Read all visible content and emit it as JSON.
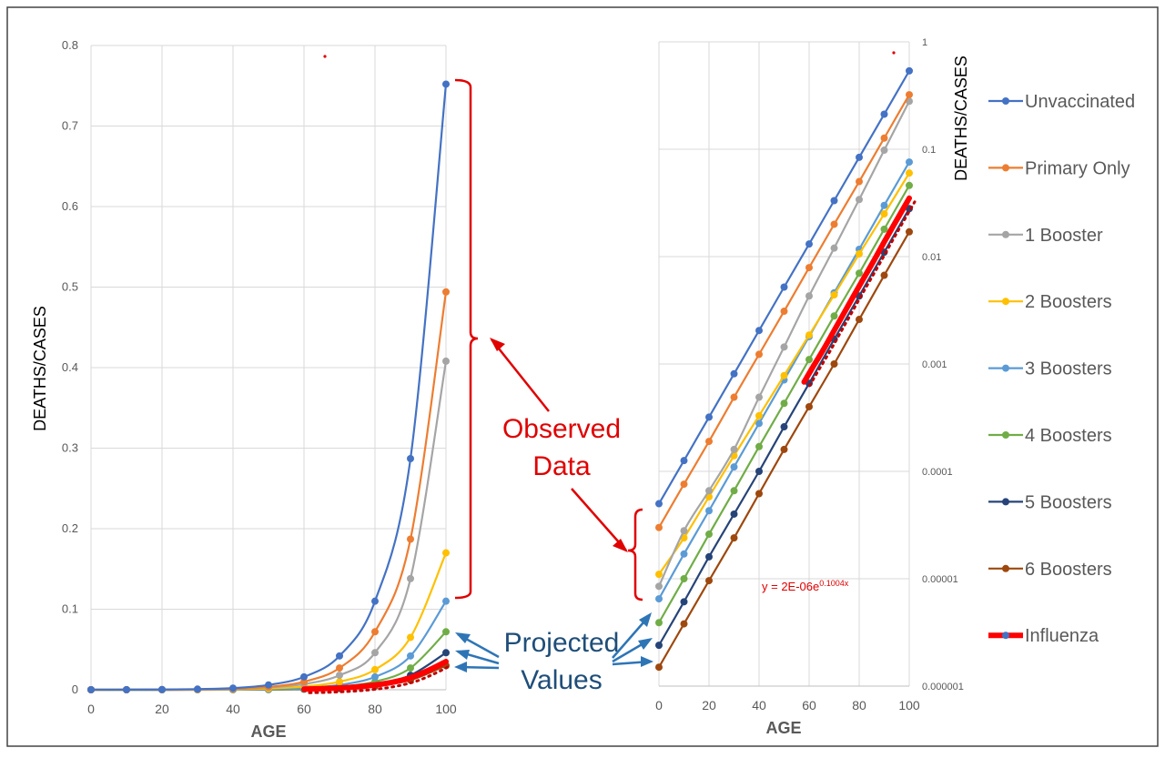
{
  "chart_data": [
    {
      "type": "line",
      "scale": "linear",
      "xlabel": "AGE",
      "ylabel": "DEATHS/CASES",
      "xlim": [
        0,
        100
      ],
      "ylim": [
        0,
        0.8
      ],
      "x_ticks": [
        "0",
        "20",
        "40",
        "60",
        "80",
        "100"
      ],
      "y_ticks": [
        "0",
        "0.1",
        "0.2",
        "0.3",
        "0.4",
        "0.5",
        "0.6",
        "0.7",
        "0.8"
      ],
      "grid": true,
      "x": [
        0,
        10,
        20,
        30,
        40,
        50,
        60,
        70,
        80,
        90,
        100
      ],
      "series": [
        {
          "name": "Unvaccinated",
          "values": [
            5e-05,
            0.0001,
            0.0003,
            0.0008,
            0.002,
            0.006,
            0.016,
            0.042,
            0.11,
            0.287,
            0.752
          ]
        },
        {
          "name": "Primary Only",
          "values": [
            3e-05,
            7e-05,
            0.0002,
            0.0005,
            0.0013,
            0.0035,
            0.01,
            0.027,
            0.072,
            0.187,
            0.494
          ]
        },
        {
          "name": "1 Booster",
          "values": [
            2e-05,
            6e-05,
            0.00016,
            0.0004,
            0.001,
            0.003,
            0.007,
            0.018,
            0.046,
            0.138,
            0.408
          ]
        },
        {
          "name": "2 Boosters",
          "values": [
            1e-05,
            3e-05,
            8e-05,
            0.0002,
            0.0006,
            0.0015,
            0.004,
            0.01,
            0.025,
            0.065,
            0.17
          ]
        },
        {
          "name": "3 Boosters",
          "values": [
            1e-05,
            2e-05,
            5e-05,
            0.00013,
            0.0003,
            0.0009,
            0.0025,
            0.006,
            0.016,
            0.042,
            0.11
          ]
        },
        {
          "name": "4 Boosters",
          "values": [
            5e-06,
            1.5e-05,
            4e-05,
            0.0001,
            0.0002,
            0.0005,
            0.0015,
            0.004,
            0.01,
            0.027,
            0.072
          ]
        },
        {
          "name": "5 Boosters",
          "values": [
            3e-06,
            8e-06,
            2e-05,
            5e-05,
            0.00013,
            0.0004,
            0.001,
            0.0025,
            0.007,
            0.018,
            0.046
          ]
        },
        {
          "name": "6 Boosters",
          "values": [
            2e-06,
            5e-06,
            1e-05,
            3e-05,
            9e-05,
            0.00025,
            0.0007,
            0.0017,
            0.0045,
            0.012,
            0.03
          ]
        },
        {
          "name": "Influenza",
          "x": [
            60,
            65,
            70,
            75,
            80,
            85,
            90,
            95,
            100
          ],
          "values": [
            0.0008,
            0.0013,
            0.0022,
            0.0036,
            0.0059,
            0.0094,
            0.015,
            0.024,
            0.035
          ]
        }
      ]
    },
    {
      "type": "line",
      "scale": "log",
      "xlabel": "AGE",
      "ylabel": "DEATHS/CASES",
      "xlim": [
        0,
        100
      ],
      "ylim": [
        1e-06,
        1
      ],
      "x_ticks": [
        "0",
        "20",
        "40",
        "60",
        "80",
        "100"
      ],
      "y_ticks": [
        "0.000001",
        "0.00001",
        "0.0001",
        "0.001",
        "0.01",
        "0.1",
        "1"
      ],
      "grid": true,
      "x": [
        0,
        10,
        20,
        30,
        40,
        50,
        60,
        70,
        80,
        90,
        100
      ],
      "series": [
        {
          "name": "Unvaccinated",
          "values": [
            5e-05,
            0.000126,
            0.00032,
            0.00081,
            0.00205,
            0.0052,
            0.0131,
            0.0332,
            0.084,
            0.212,
            0.537
          ]
        },
        {
          "name": "Primary Only",
          "values": [
            3e-05,
            7.6e-05,
            0.00019,
            0.00049,
            0.00123,
            0.0031,
            0.0079,
            0.02,
            0.05,
            0.127,
            0.322
          ]
        },
        {
          "name": "1 Booster",
          "values": [
            8.5e-06,
            2.8e-05,
            6.6e-05,
            0.00016,
            0.00049,
            0.00144,
            0.0043,
            0.012,
            0.034,
            0.098,
            0.28
          ]
        },
        {
          "name": "2 Boosters",
          "values": [
            1.1e-05,
            2.4e-05,
            5.8e-05,
            0.00014,
            0.00033,
            0.00078,
            0.00186,
            0.0044,
            0.0106,
            0.025,
            0.06
          ]
        },
        {
          "name": "3 Boosters",
          "values": [
            6.5e-06,
            1.7e-05,
            4.3e-05,
            0.00011,
            0.00028,
            0.00071,
            0.0018,
            0.0046,
            0.0117,
            0.03,
            0.076
          ]
        },
        {
          "name": "4 Boosters",
          "values": [
            3.9e-06,
            1e-05,
            2.6e-05,
            6.6e-05,
            0.00017,
            0.00043,
            0.0011,
            0.0028,
            0.007,
            0.018,
            0.046
          ]
        },
        {
          "name": "5 Boosters",
          "values": [
            2.4e-06,
            6.1e-06,
            1.6e-05,
            4e-05,
            0.0001,
            0.00026,
            0.00066,
            0.0017,
            0.0043,
            0.011,
            0.028
          ]
        },
        {
          "name": "6 Boosters",
          "values": [
            1.5e-06,
            3.8e-06,
            9.6e-06,
            2.4e-05,
            6.2e-05,
            0.00016,
            0.0004,
            0.001,
            0.0026,
            0.0067,
            0.017
          ]
        },
        {
          "name": "Influenza",
          "x": [
            58,
            62,
            66,
            70,
            74,
            78,
            82,
            86,
            90,
            94,
            98,
            100
          ],
          "values": [
            0.00068,
            0.00098,
            0.0014,
            0.00205,
            0.003,
            0.0044,
            0.0064,
            0.0093,
            0.0137,
            0.02,
            0.029,
            0.035
          ]
        }
      ]
    }
  ],
  "legend": {
    "placement": "right",
    "items": [
      {
        "label": "Unvaccinated",
        "color": "#4472c4"
      },
      {
        "label": "Primary Only",
        "color": "#ed7d31"
      },
      {
        "label": "1 Booster",
        "color": "#a5a5a5"
      },
      {
        "label": "2 Boosters",
        "color": "#ffc000"
      },
      {
        "label": "3 Boosters",
        "color": "#5b9bd5"
      },
      {
        "label": "4 Boosters",
        "color": "#70ad47"
      },
      {
        "label": "5 Boosters",
        "color": "#264478"
      },
      {
        "label": "6 Boosters",
        "color": "#9e480e"
      },
      {
        "label": "Influenza",
        "color": "#ff0000",
        "marker_color": "#4472c4"
      }
    ]
  },
  "annotations": {
    "observed_line1": "Observed",
    "observed_line2": "Data",
    "projected_line1": "Projected",
    "projected_line2": "Values",
    "trend_equation": "y = 2E-06e",
    "trend_exponent": "0.1004x",
    "observed_color": "#e00000",
    "projected_color": "#1f4e79",
    "arrow_blue": "#2e75b6"
  }
}
